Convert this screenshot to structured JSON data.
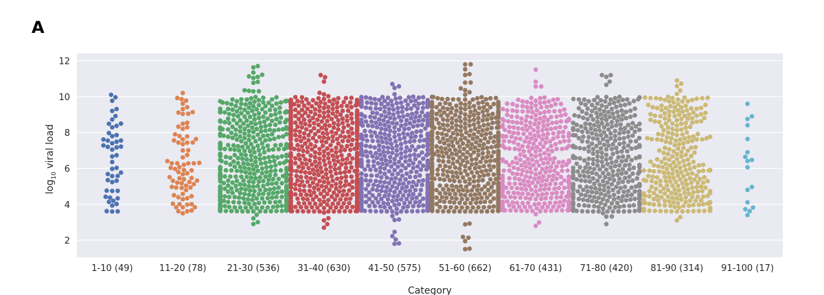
{
  "panel_label": "A",
  "chart_data": {
    "type": "scatter",
    "subtype": "swarm",
    "title": "",
    "xlabel": "Category",
    "ylabel": "log10 viral load",
    "ylabel_main": "log",
    "ylabel_sub": "10",
    "ylabel_rest": " viral load",
    "ylim": [
      1.05,
      12.4
    ],
    "yticks": [
      2,
      4,
      6,
      8,
      10,
      12
    ],
    "grid": true,
    "background": "#eaeaf2",
    "categories": [
      "1-10 (49)",
      "11-20 (78)",
      "21-30 (536)",
      "31-40 (630)",
      "41-50 (575)",
      "51-60 (662)",
      "61-70 (431)",
      "71-80 (420)",
      "81-90 (314)",
      "91-100 (17)"
    ],
    "counts": [
      49,
      78,
      536,
      630,
      575,
      662,
      431,
      420,
      314,
      17
    ],
    "colors": [
      "#4c72b0",
      "#dd8452",
      "#55a868",
      "#c44e52",
      "#8172b3",
      "#937860",
      "#da8bc3",
      "#8c8c8c",
      "#ccb974",
      "#64b5cd"
    ],
    "value_range": [
      [
        3.6,
        10.1
      ],
      [
        3.5,
        10.2
      ],
      [
        2.9,
        11.7
      ],
      [
        2.7,
        11.2
      ],
      [
        1.8,
        10.7
      ],
      [
        1.5,
        11.8
      ],
      [
        2.8,
        11.5
      ],
      [
        2.9,
        11.2
      ],
      [
        3.1,
        10.9
      ],
      [
        3.4,
        9.6
      ]
    ]
  }
}
